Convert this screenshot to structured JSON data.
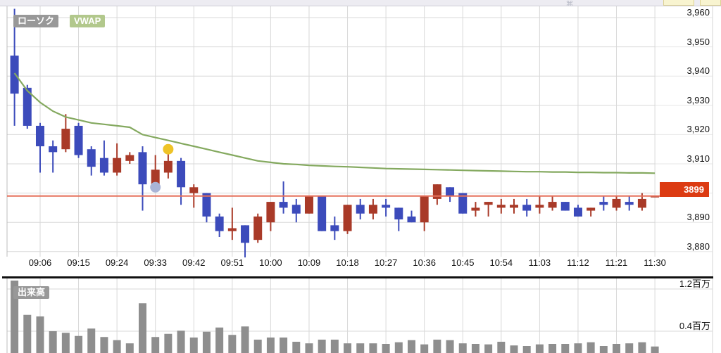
{
  "header": {
    "candles_label": "ローソク",
    "vwap_label": "VWAP",
    "volume_label": "出来高",
    "candles_chip_color": "#989898",
    "vwap_chip_color": "#b2c88c",
    "volume_chip_color": "#989898"
  },
  "current_price": {
    "label": "3899",
    "value": 3899,
    "badge_color": "#dc3b12",
    "line_color": "#e5705a"
  },
  "price_axis": {
    "ticks": [
      {
        "label": "3,960",
        "value": 3960
      },
      {
        "label": "3,950",
        "value": 3950
      },
      {
        "label": "3,940",
        "value": 3940
      },
      {
        "label": "3,930",
        "value": 3930
      },
      {
        "label": "3,920",
        "value": 3920
      },
      {
        "label": "3,910",
        "value": 3910
      },
      {
        "label": "3,890",
        "value": 3890
      },
      {
        "label": "3,880",
        "value": 3880
      }
    ]
  },
  "volume_axis": {
    "ticks": [
      {
        "label": "1.2百万",
        "value": 1.2
      },
      {
        "label": "0.4百万",
        "value": 0.4
      }
    ]
  },
  "time_axis": {
    "labels": [
      "09:06",
      "09:15",
      "09:24",
      "09:33",
      "09:42",
      "09:51",
      "10:00",
      "10:09",
      "10:18",
      "10:27",
      "10:36",
      "10:45",
      "10:54",
      "11:03",
      "11:12",
      "11:21",
      "11:30"
    ]
  },
  "chart_data": {
    "type": "candlestick",
    "interval_minutes": 3,
    "session_start": "09:00",
    "session_end": "11:30",
    "ylim": [
      3878,
      3963
    ],
    "price_grid": {
      "max": 3960,
      "min": 3880,
      "step": 10
    },
    "volume_grid_millions": [
      1.2,
      0.4
    ],
    "legend_position": "top-left",
    "grid": true,
    "times": [
      "09:00",
      "09:03",
      "09:06",
      "09:09",
      "09:12",
      "09:15",
      "09:18",
      "09:21",
      "09:24",
      "09:27",
      "09:30",
      "09:33",
      "09:36",
      "09:39",
      "09:42",
      "09:45",
      "09:48",
      "09:51",
      "09:54",
      "09:57",
      "10:00",
      "10:03",
      "10:06",
      "10:09",
      "10:12",
      "10:15",
      "10:18",
      "10:21",
      "10:24",
      "10:27",
      "10:30",
      "10:33",
      "10:36",
      "10:39",
      "10:42",
      "10:45",
      "10:48",
      "10:51",
      "10:54",
      "10:57",
      "11:00",
      "11:03",
      "11:06",
      "11:09",
      "11:12",
      "11:15",
      "11:18",
      "11:21",
      "11:24",
      "11:27",
      "11:30"
    ],
    "ohlc": [
      [
        3947,
        3963,
        3923,
        3934
      ],
      [
        3936,
        3937,
        3922,
        3923
      ],
      [
        3923,
        3924,
        3907,
        3916
      ],
      [
        3916,
        3918,
        3907,
        3914
      ],
      [
        3915,
        3927,
        3914,
        3922
      ],
      [
        3923,
        3924,
        3912,
        3913
      ],
      [
        3915,
        3916,
        3906,
        3909
      ],
      [
        3912,
        3918,
        3906,
        3907
      ],
      [
        3907,
        3917,
        3906,
        3912
      ],
      [
        3911,
        3914,
        3910,
        3913
      ],
      [
        3914,
        3916,
        3894,
        3903
      ],
      [
        3902,
        3913,
        3901,
        3908
      ],
      [
        3907,
        3915,
        3905,
        3911
      ],
      [
        3911,
        3912,
        3896,
        3902
      ],
      [
        3900,
        3903,
        3895,
        3902
      ],
      [
        3900,
        3900,
        3890,
        3892
      ],
      [
        3892,
        3893,
        3885,
        3887
      ],
      [
        3887,
        3895,
        3884,
        3888
      ],
      [
        3889,
        3889,
        3878,
        3883
      ],
      [
        3884,
        3893,
        3883,
        3892
      ],
      [
        3890,
        3897,
        3887,
        3897
      ],
      [
        3897,
        3904,
        3893,
        3895
      ],
      [
        3896,
        3898,
        3890,
        3893
      ],
      [
        3893,
        3899,
        3893,
        3899
      ],
      [
        3899,
        3899,
        3887,
        3887
      ],
      [
        3889,
        3892,
        3884,
        3887
      ],
      [
        3887,
        3896,
        3886,
        3896
      ],
      [
        3896,
        3898,
        3891,
        3893
      ],
      [
        3893,
        3898,
        3891,
        3896
      ],
      [
        3896,
        3898,
        3892,
        3895
      ],
      [
        3895,
        3895,
        3887,
        3891
      ],
      [
        3892,
        3894,
        3890,
        3890
      ],
      [
        3890,
        3899,
        3887,
        3899
      ],
      [
        3898,
        3903,
        3896,
        3903
      ],
      [
        3902,
        3902,
        3897,
        3899
      ],
      [
        3900,
        3900,
        3893,
        3893
      ],
      [
        3894,
        3897,
        3892,
        3895
      ],
      [
        3896,
        3897,
        3892,
        3897
      ],
      [
        3895,
        3898,
        3893,
        3896
      ],
      [
        3895,
        3898,
        3893,
        3896
      ],
      [
        3896,
        3898,
        3892,
        3894
      ],
      [
        3895,
        3899,
        3893,
        3896
      ],
      [
        3895,
        3899,
        3894,
        3897
      ],
      [
        3897,
        3897,
        3894,
        3894
      ],
      [
        3895,
        3896,
        3892,
        3892
      ],
      [
        3894,
        3895,
        3892,
        3895
      ],
      [
        3897,
        3899,
        3894,
        3896
      ],
      [
        3895,
        3899,
        3894,
        3898
      ],
      [
        3897,
        3899,
        3894,
        3896
      ],
      [
        3895,
        3900,
        3894,
        3898
      ],
      [
        3899,
        3899,
        3899,
        3899
      ]
    ],
    "vwap": [
      3941,
      3935,
      3931,
      3928,
      3926,
      3925,
      3924,
      3923.5,
      3923,
      3922.5,
      3920,
      3919,
      3918,
      3917,
      3916,
      3915,
      3914,
      3913,
      3912,
      3911,
      3910.5,
      3910,
      3909.8,
      3909.5,
      3909.3,
      3909.1,
      3909,
      3908.8,
      3908.6,
      3908.4,
      3908.3,
      3908.2,
      3908.1,
      3908,
      3907.9,
      3907.8,
      3907.7,
      3907.6,
      3907.5,
      3907.4,
      3907.3,
      3907.3,
      3907.2,
      3907.2,
      3907.1,
      3907.1,
      3907,
      3907,
      3906.9,
      3906.9,
      3906.8
    ],
    "volume_millions": [
      1.36,
      0.71,
      0.68,
      0.4,
      0.37,
      0.31,
      0.45,
      0.29,
      0.23,
      0.17,
      0.93,
      0.29,
      0.35,
      0.41,
      0.28,
      0.39,
      0.47,
      0.33,
      0.49,
      0.24,
      0.28,
      0.28,
      0.2,
      0.17,
      0.24,
      0.24,
      0.17,
      0.17,
      0.17,
      0.16,
      0.19,
      0.23,
      0.15,
      0.24,
      0.23,
      0.17,
      0.16,
      0.15,
      0.2,
      0.13,
      0.12,
      0.15,
      0.16,
      0.16,
      0.17,
      0.19,
      0.12,
      0.16,
      0.17,
      0.19,
      0.11
    ],
    "markers": [
      {
        "time": "09:33",
        "price": 3902,
        "color": "#a9b4d6"
      },
      {
        "time": "09:36",
        "price": 3915,
        "color": "#eec327"
      }
    ],
    "colors": {
      "up": "#a93a28",
      "down": "#3c4bbb",
      "vwap": "#84a95f",
      "volume": "#8e8e8e",
      "grid": "#d8d8d8",
      "separator": "#111111"
    }
  }
}
